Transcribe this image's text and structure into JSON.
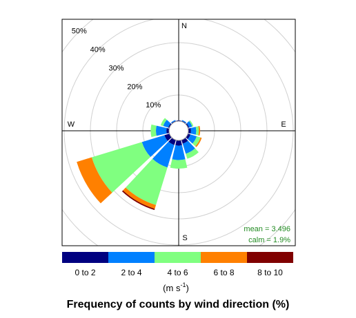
{
  "chart_data": {
    "type": "windrose",
    "title": "Frequency of counts by wind direction (%)",
    "units": "(m s",
    "units_sup": "-1",
    "units_end": ")",
    "compass": [
      "N",
      "E",
      "S",
      "W"
    ],
    "annotations": [
      "mean = 3.496",
      "calm = 1.9%"
    ],
    "annotation_color": "#228b22",
    "directions": [
      0,
      30,
      60,
      90,
      120,
      150,
      180,
      210,
      240,
      270,
      300,
      330
    ],
    "series": [
      {
        "name": "0 to 2",
        "color": "#000080",
        "values": [
          0.3,
          0.3,
          0.5,
          1,
          1,
          1.5,
          2,
          2,
          2,
          1,
          0.5,
          0.3
        ]
      },
      {
        "name": "2 to 4",
        "color": "#0080ff",
        "values": [
          0,
          0.3,
          1.2,
          2,
          2.5,
          4,
          5.5,
          9,
          9,
          4,
          2,
          0.3
        ]
      },
      {
        "name": "4 to 6",
        "color": "#80ff80",
        "values": [
          0,
          0,
          0.5,
          1,
          1.5,
          2,
          3.3,
          15,
          20,
          2,
          1,
          0
        ]
      },
      {
        "name": "6 to 8",
        "color": "#ff8000",
        "values": [
          0,
          0,
          0,
          0.5,
          0.5,
          0,
          0,
          1.5,
          6,
          0,
          0,
          0
        ]
      },
      {
        "name": "8 to 10",
        "color": "#800000",
        "values": [
          0,
          0,
          0,
          0,
          0,
          0,
          0,
          0.5,
          0,
          0,
          0,
          0
        ]
      }
    ],
    "rlim": [
      0,
      50
    ],
    "rticks": [
      {
        "value": 10,
        "label": "10%"
      },
      {
        "value": 20,
        "label": "20%"
      },
      {
        "value": 30,
        "label": "30%"
      },
      {
        "value": 40,
        "label": "40%"
      },
      {
        "value": 50,
        "label": "50%"
      }
    ],
    "grid": true
  }
}
